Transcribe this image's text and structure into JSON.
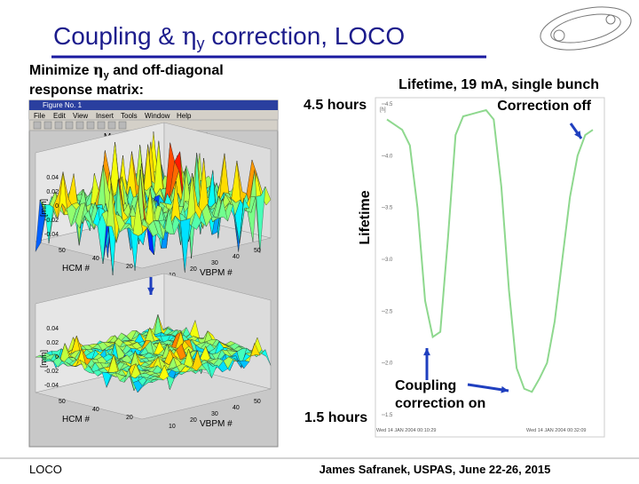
{
  "header": {
    "title": [
      "Coupling & ",
      "η",
      "y",
      " correction, LOCO"
    ]
  },
  "left": {
    "caption": [
      "Minimize ",
      "η",
      "y",
      " and off-diagonal",
      "response matrix:"
    ],
    "figure": {
      "window_title": "Figure No. 1",
      "menu": [
        "File",
        "Edit",
        "View",
        "Insert",
        "Tools",
        "Window",
        "Help"
      ],
      "plot_title": "Measured Response Matrix",
      "plots": [
        {
          "zticks": [
            "0.04",
            "0.02",
            "0",
            "-0.02",
            "-0.04"
          ],
          "z_label": "[mm]",
          "x_label": "HCM #",
          "y_label": "VBPM #",
          "xticks": [
            "50",
            "40",
            "20"
          ],
          "yticks": [
            "10",
            "20",
            "30",
            "40",
            "50"
          ]
        },
        {
          "zticks": [
            "0.04",
            "0.02",
            "0",
            "-0.02",
            "-0.04"
          ],
          "z_label": "[mm]",
          "x_label": "HCM #",
          "y_label": "VBPM #",
          "xticks": [
            "50",
            "40",
            "20"
          ],
          "yticks": [
            "10",
            "20",
            "30",
            "40",
            "50"
          ]
        }
      ]
    }
  },
  "right": {
    "title": "Lifetime, 19 mA, single bunch",
    "top_label": "4.5 hours",
    "bottom_label": "1.5 hours",
    "y_label": "Lifetime",
    "note_off": "Correction off",
    "note_on": [
      "Coupling",
      "correction on"
    ],
    "plot": {
      "unit": "[h]",
      "ylim": [
        1.5,
        4.5
      ],
      "yticks": [
        {
          "value": 1.5,
          "label": "1.5"
        },
        {
          "value": 2,
          "label": "2.0"
        },
        {
          "value": 2.5,
          "label": "2.5"
        },
        {
          "value": 3,
          "label": "3.0"
        },
        {
          "value": 3.5,
          "label": "3.5"
        },
        {
          "value": 4,
          "label": "4.0"
        },
        {
          "value": 4.5,
          "label": "4.5"
        }
      ],
      "values": [
        4.35,
        4.3,
        4.25,
        4.1,
        3.5,
        2.6,
        2.25,
        2.3,
        3.2,
        4.2,
        4.38,
        4.4,
        4.42,
        4.44,
        4.35,
        3.7,
        2.7,
        1.95,
        1.75,
        1.72,
        1.85,
        2.0,
        2.4,
        3.0,
        3.6,
        4.0,
        4.2,
        4.25
      ],
      "color": "#8ed88e",
      "x_labels": [
        "Wed 14 JAN 2004 00:10:29",
        "Wed 14 JAN 2004 00:32:09"
      ]
    }
  },
  "footer": {
    "left": "LOCO",
    "right": "James Safranek, USPAS, June 22-26, 2015"
  }
}
